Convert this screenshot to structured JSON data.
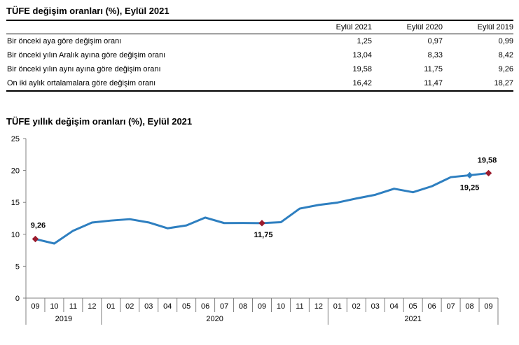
{
  "table": {
    "title": "TÜFE değişim oranları (%), Eylül 2021",
    "headers": [
      "Eylül 2021",
      "Eylül 2020",
      "Eylül 2019"
    ],
    "rows": [
      {
        "label": "Bir önceki aya göre değişim oranı",
        "values": [
          "1,25",
          "0,97",
          "0,99"
        ]
      },
      {
        "label": "Bir önceki yılın Aralık ayına göre değişim oranı",
        "values": [
          "13,04",
          "8,33",
          "8,42"
        ]
      },
      {
        "label": "Bir önceki yılın aynı ayına göre değişim oranı",
        "values": [
          "19,58",
          "11,75",
          "9,26"
        ]
      },
      {
        "label": "On iki aylık ortalamalara göre değişim oranı",
        "values": [
          "16,42",
          "11,47",
          "18,27"
        ]
      }
    ]
  },
  "chart_title": "TÜFE yıllık değişim oranları (%), Eylül 2021",
  "chart_data": {
    "type": "line",
    "title": "TÜFE yıllık değişim oranları (%), Eylül 2021",
    "xlabel": "",
    "ylabel": "",
    "ylim": [
      0,
      25
    ],
    "yticks": [
      0,
      5,
      10,
      15,
      20,
      25
    ],
    "grid": false,
    "categories": [
      "09",
      "10",
      "11",
      "12",
      "01",
      "02",
      "03",
      "04",
      "05",
      "06",
      "07",
      "08",
      "09",
      "10",
      "11",
      "12",
      "01",
      "02",
      "03",
      "04",
      "05",
      "06",
      "07",
      "08",
      "09"
    ],
    "year_groups": [
      {
        "label": "2019",
        "count": 4
      },
      {
        "label": "2020",
        "count": 12
      },
      {
        "label": "2021",
        "count": 9
      }
    ],
    "series": [
      {
        "color": "#2e7fc0",
        "values": [
          9.26,
          8.55,
          10.56,
          11.84,
          12.15,
          12.37,
          11.86,
          10.94,
          11.39,
          12.62,
          11.76,
          11.77,
          11.75,
          11.89,
          14.03,
          14.6,
          14.97,
          15.61,
          16.19,
          17.14,
          16.59,
          17.53,
          18.95,
          19.25,
          19.58
        ]
      }
    ],
    "highlight_points": [
      {
        "index": 0,
        "label": "9,26",
        "color": "#9b1c2e"
      },
      {
        "index": 12,
        "label": "11,75",
        "color": "#9b1c2e"
      },
      {
        "index": 23,
        "label": "19,25",
        "color": "#2e7fc0"
      },
      {
        "index": 24,
        "label": "19,58",
        "color": "#9b1c2e"
      }
    ]
  }
}
